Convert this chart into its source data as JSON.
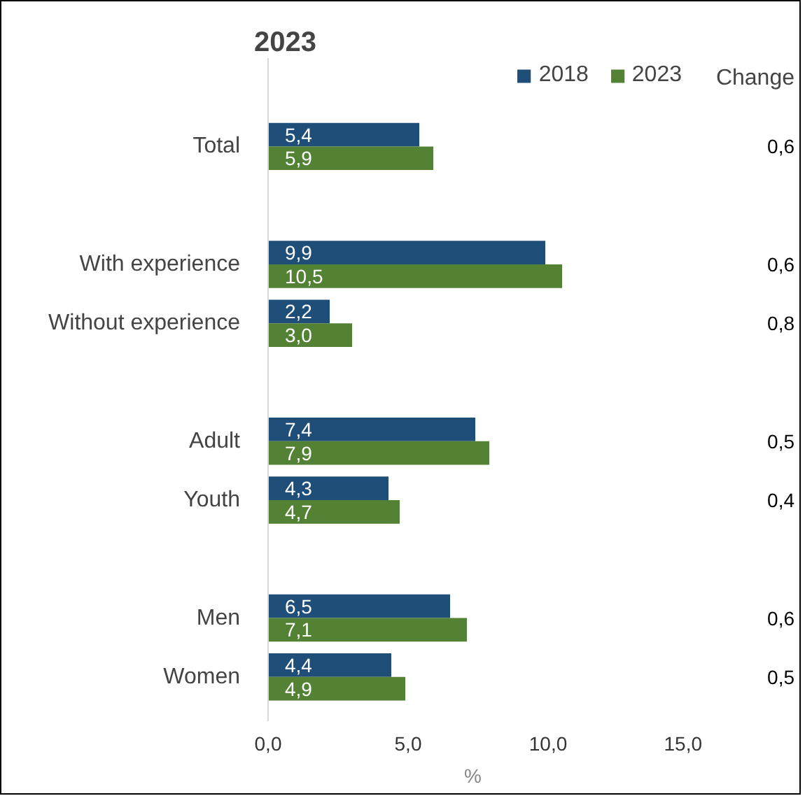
{
  "chart_data": {
    "type": "bar",
    "orientation": "horizontal",
    "title": "2023",
    "categories": [
      "Total",
      null,
      "With experience",
      "Without experience",
      null,
      "Adult",
      "Youth",
      null,
      "Men",
      "Women"
    ],
    "series": [
      {
        "name": "2018",
        "color": "#1f4e79",
        "values": [
          5.4,
          null,
          9.9,
          2.2,
          null,
          7.4,
          4.3,
          null,
          6.5,
          4.4
        ],
        "value_labels": [
          "5,4",
          null,
          "9,9",
          "2,2",
          null,
          "7,4",
          "4,3",
          null,
          "6,5",
          "4,4"
        ]
      },
      {
        "name": "2023",
        "color": "#548235",
        "values": [
          5.9,
          null,
          10.5,
          3.0,
          null,
          7.9,
          4.7,
          null,
          7.1,
          4.9
        ],
        "value_labels": [
          "5,9",
          null,
          "10,5",
          "3,0",
          null,
          "7,9",
          "4,7",
          null,
          "7,1",
          "4,9"
        ]
      }
    ],
    "xlim": [
      0,
      15
    ],
    "xticks": [
      {
        "value": 0,
        "label": "0,0"
      },
      {
        "value": 5,
        "label": "5,0"
      },
      {
        "value": 10,
        "label": "10,0"
      },
      {
        "value": 15,
        "label": "15,0"
      }
    ],
    "legend": "top right",
    "grid": false,
    "annotations": [
      "Change",
      "%",
      "0,6",
      "0,6",
      "0,8",
      "0,5",
      "0,4",
      "0,6",
      "0,5"
    ]
  }
}
